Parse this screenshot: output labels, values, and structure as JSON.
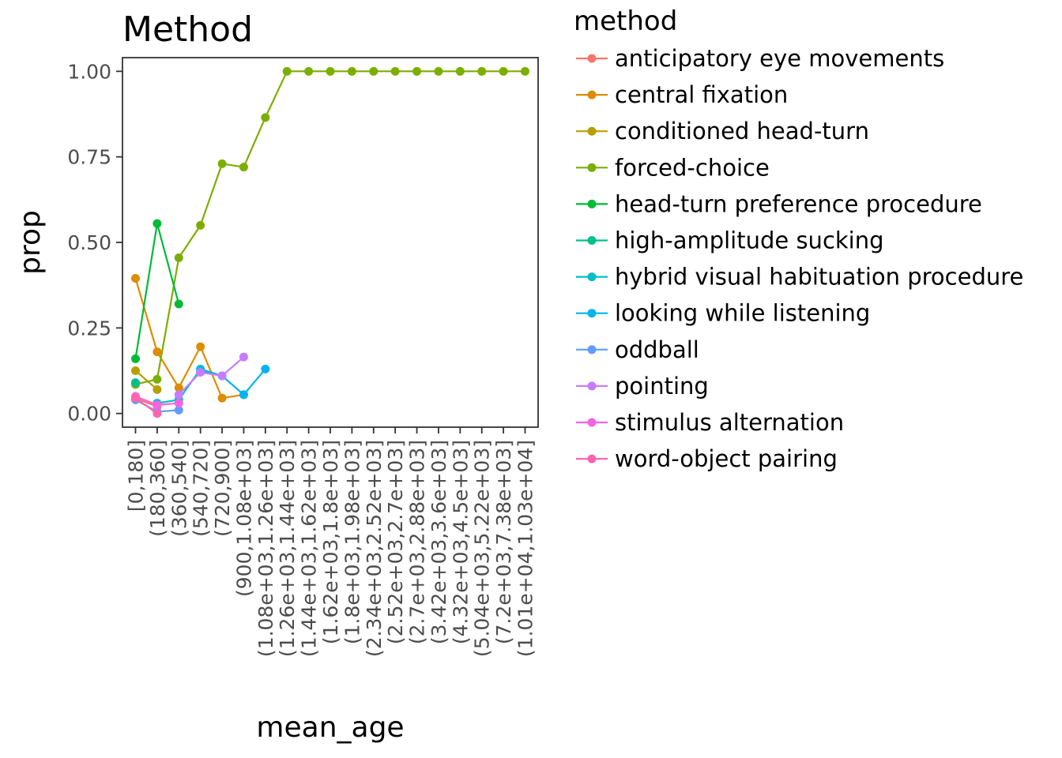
{
  "chart_data": {
    "type": "line",
    "title": "Method",
    "xlabel": "mean_age",
    "ylabel": "prop",
    "ylim": [
      -0.04,
      1.04
    ],
    "yticks": [
      0,
      0.25,
      0.5,
      0.75,
      1
    ],
    "ytick_labels": [
      "0.00",
      "0.25",
      "0.50",
      "0.75",
      "1.00"
    ],
    "grid": false,
    "legend_position": "right",
    "legend_title": "method",
    "categories": [
      "[0,180]",
      "(180,360]",
      "(360,540]",
      "(540,720]",
      "(720,900]",
      "(900,1.08e+03]",
      "(1.08e+03,1.26e+03]",
      "(1.26e+03,1.44e+03]",
      "(1.44e+03,1.62e+03]",
      "(1.62e+03,1.8e+03]",
      "(1.8e+03,1.98e+03]",
      "(2.34e+03,2.52e+03]",
      "(2.52e+03,2.7e+03]",
      "(2.7e+03,2.88e+03]",
      "(3.42e+03,3.6e+03]",
      "(4.32e+03,4.5e+03]",
      "(5.04e+03,5.22e+03]",
      "(7.2e+03,7.38e+03]",
      "(1.01e+04,1.03e+04]"
    ],
    "series": [
      {
        "name": "anticipatory eye movements",
        "color": "#F8766D",
        "values": [
          0.045,
          0.02,
          null,
          null,
          null,
          null,
          null,
          null,
          null,
          null,
          null,
          null,
          null,
          null,
          null,
          null,
          null,
          null,
          null
        ]
      },
      {
        "name": "central fixation",
        "color": "#DE8C00",
        "values": [
          0.395,
          0.18,
          0.075,
          0.195,
          0.045,
          0.055,
          null,
          null,
          null,
          null,
          null,
          null,
          null,
          null,
          null,
          null,
          null,
          null,
          null
        ]
      },
      {
        "name": "conditioned head-turn",
        "color": "#B79F00",
        "values": [
          0.125,
          0.07,
          null,
          null,
          null,
          null,
          null,
          null,
          null,
          null,
          null,
          null,
          null,
          null,
          null,
          null,
          null,
          null,
          null
        ]
      },
      {
        "name": "forced-choice",
        "color": "#7CAE00",
        "values": [
          0.085,
          0.1,
          0.455,
          0.55,
          0.73,
          0.72,
          0.865,
          1,
          1,
          1,
          1,
          1,
          1,
          1,
          1,
          1,
          1,
          1,
          1
        ]
      },
      {
        "name": "head-turn preference procedure",
        "color": "#00BA38",
        "values": [
          0.16,
          0.555,
          0.32,
          null,
          null,
          null,
          null,
          null,
          null,
          null,
          null,
          null,
          null,
          null,
          null,
          null,
          null,
          null,
          null
        ]
      },
      {
        "name": "high-amplitude sucking",
        "color": "#00C08B",
        "values": [
          0.09,
          null,
          null,
          null,
          null,
          null,
          null,
          null,
          null,
          null,
          null,
          null,
          null,
          null,
          null,
          null,
          null,
          null,
          null
        ]
      },
      {
        "name": "hybrid visual habituation procedure",
        "color": "#00BFC4",
        "values": [
          null,
          0.03,
          0.04,
          0.13,
          0.11,
          null,
          null,
          null,
          null,
          null,
          null,
          null,
          null,
          null,
          null,
          null,
          null,
          null,
          null
        ]
      },
      {
        "name": "looking while listening",
        "color": "#00B4F0",
        "values": [
          null,
          null,
          null,
          0.125,
          0.11,
          0.055,
          0.13,
          null,
          null,
          null,
          null,
          null,
          null,
          null,
          null,
          null,
          null,
          null,
          null
        ]
      },
      {
        "name": "oddball",
        "color": "#619CFF",
        "values": [
          0.04,
          0.005,
          0.01,
          null,
          null,
          null,
          null,
          null,
          null,
          null,
          null,
          null,
          null,
          null,
          null,
          null,
          null,
          null,
          null
        ]
      },
      {
        "name": "pointing",
        "color": "#C77CFF",
        "values": [
          null,
          null,
          0.055,
          0.12,
          0.11,
          0.165,
          null,
          null,
          null,
          null,
          null,
          null,
          null,
          null,
          null,
          null,
          null,
          null,
          null
        ]
      },
      {
        "name": "stimulus alternation",
        "color": "#F564E3",
        "values": [
          0.05,
          0.025,
          0.03,
          null,
          null,
          null,
          null,
          null,
          null,
          null,
          null,
          null,
          null,
          null,
          null,
          null,
          null,
          null,
          null
        ]
      },
      {
        "name": "word-object pairing",
        "color": "#FF64B0",
        "values": [
          0.045,
          0.0,
          null,
          null,
          null,
          null,
          null,
          null,
          null,
          null,
          null,
          null,
          null,
          null,
          null,
          null,
          null,
          null,
          null
        ]
      }
    ]
  }
}
